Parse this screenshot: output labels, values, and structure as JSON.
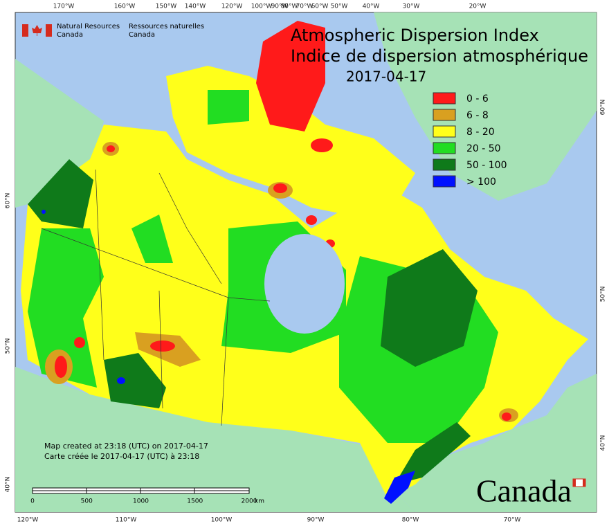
{
  "header": {
    "agency_en": "Natural Resources",
    "agency_en_2": "Canada",
    "agency_fr": "Ressources naturelles",
    "agency_fr_2": "Canada"
  },
  "title": {
    "line1": "Atmospheric Dispersion Index",
    "line2": "Indice de dispersion atmosphérique",
    "date": "2017-04-17"
  },
  "legend": [
    {
      "label": "0 - 6",
      "color": "#ff1a1a"
    },
    {
      "label": "6 - 8",
      "color": "#d9a020"
    },
    {
      "label": "8 - 20",
      "color": "#ffff1a"
    },
    {
      "label": "20 - 50",
      "color": "#22dd22"
    },
    {
      "label": "50 - 100",
      "color": "#0f7a1a"
    },
    {
      "label": "> 100",
      "color": "#0010ff"
    }
  ],
  "graticule": {
    "top": [
      "170°W",
      "160°W",
      "150°W",
      "140°W",
      "120°W",
      "100°W",
      "90°W",
      "80°W",
      "70°W",
      "60°W",
      "50°W",
      "40°W",
      "30°W",
      "20°W"
    ],
    "bottom": [
      "120°W",
      "110°W",
      "100°W",
      "90°W",
      "80°W",
      "70°W"
    ],
    "left": [
      "60°N",
      "50°N",
      "40°N"
    ],
    "right": [
      "60°N",
      "50°N",
      "40°N"
    ]
  },
  "notes": [
    "Map created at 23:18 (UTC) on 2017-04-17",
    "Carte créée le 2017-04-17 (UTC) à 23:18"
  ],
  "scale_bar": {
    "labels": [
      "0",
      "500",
      "1000",
      "1500",
      "2000"
    ],
    "unit": "km"
  },
  "wordmark": "Canada"
}
